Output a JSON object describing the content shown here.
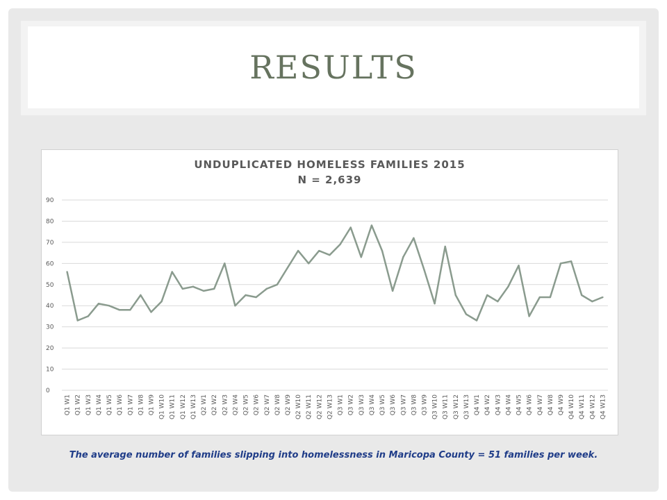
{
  "slide": {
    "title": "RESULTS"
  },
  "caption": "The average number of families slipping into homelessness in Maricopa County = 51 families per week.",
  "colors": {
    "line": "#8a9b8e",
    "title": "#66735f",
    "caption": "#1f3c88",
    "grid": "#d9d9d9"
  },
  "chart_data": {
    "type": "line",
    "title": "UNDUPLICATED HOMELESS FAMILIES 2015",
    "subtitle": "N = 2,639",
    "xlabel": "",
    "ylabel": "",
    "ylim": [
      0,
      90
    ],
    "yticks": [
      0,
      10,
      20,
      30,
      40,
      50,
      60,
      70,
      80,
      90
    ],
    "grid": true,
    "categories": [
      "Q1 W1",
      "Q1 W2",
      "Q1 W3",
      "Q1 W4",
      "Q1 W5",
      "Q1 W6",
      "Q1 W7",
      "Q1 W8",
      "Q1 W9",
      "Q1 W10",
      "Q1 W11",
      "Q1 W12",
      "Q1 W13",
      "Q2 W1",
      "Q2 W2",
      "Q2 W3",
      "Q2 W4",
      "Q2 W5",
      "Q2 W6",
      "Q2 W7",
      "Q2 W8",
      "Q2 W9",
      "Q2 W10",
      "Q2 W11",
      "Q2 W12",
      "Q2 W13",
      "Q3 W1",
      "Q3 W2",
      "Q3 W3",
      "Q3 W4",
      "Q3 W5",
      "Q3 W6",
      "Q3 W7",
      "Q3 W8",
      "Q3 W9",
      "Q3 W10",
      "Q3 W11",
      "Q3 W12",
      "Q3 W13",
      "Q4 W1",
      "Q4 W2",
      "Q4 W3",
      "Q4 W4",
      "Q4 W5",
      "Q4 W6",
      "Q4 W7",
      "Q4 W8",
      "Q4 W9",
      "Q4 W10",
      "Q4 W11",
      "Q4 W12",
      "Q4 W13"
    ],
    "series": [
      {
        "values": [
          56,
          33,
          35,
          41,
          40,
          38,
          38,
          45,
          37,
          42,
          56,
          48,
          49,
          47,
          48,
          60,
          40,
          45,
          44,
          48,
          50,
          58,
          66,
          60,
          66,
          64,
          69,
          77,
          63,
          78,
          66,
          47,
          63,
          72,
          57,
          41,
          68,
          45,
          36,
          33,
          45,
          42,
          49,
          59,
          35,
          44,
          44,
          60,
          61,
          45,
          42,
          44
        ]
      }
    ]
  }
}
